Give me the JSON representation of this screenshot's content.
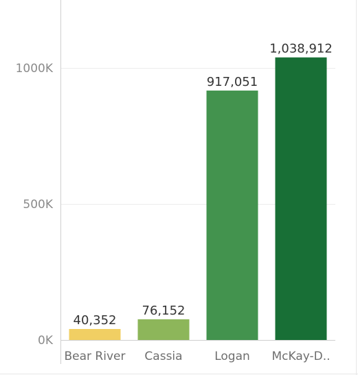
{
  "chart_data": {
    "type": "bar",
    "categories": [
      "Bear River",
      "Cassia",
      "Logan",
      "McKay-D.."
    ],
    "values": [
      40352,
      76152,
      917051,
      1038912
    ],
    "value_labels": [
      "40,352",
      "76,152",
      "917,051",
      "1,038,912"
    ],
    "bar_colors": [
      "#f1cf63",
      "#8db65a",
      "#43934e",
      "#186f36"
    ],
    "y_ticks": [
      0,
      500000,
      1000000
    ],
    "y_tick_labels": [
      "0K",
      "500K",
      "1000K"
    ],
    "ylim": [
      0,
      1000000
    ],
    "grid": true,
    "legend": "none"
  }
}
